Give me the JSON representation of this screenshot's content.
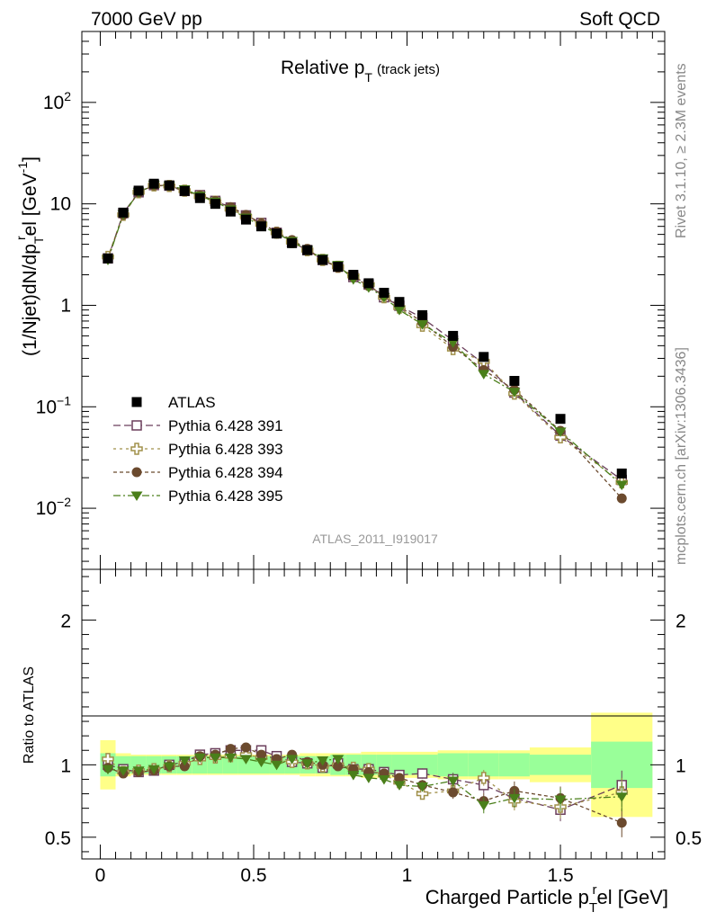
{
  "header": {
    "left": "7000 GeV pp",
    "right": "Soft QCD"
  },
  "side_labels": {
    "rivet": "Rivet 3.1.10, ≥ 2.3M events",
    "mcplots": "mcplots.cern.ch [arXiv:1306.3436]"
  },
  "chart_data": [
    {
      "type": "scatter",
      "panel": "main",
      "title": "Relative p_T (track jets)",
      "title_main": "Relative p",
      "title_sub": "T",
      "title_suffix": "(track jets)",
      "ylabel": "(1/Njet)dN/dp_T^rel [GeV^-1]",
      "ylabel_parts": [
        "(1/Njet)dN/dp",
        "T",
        "r",
        "el [GeV",
        "-1",
        "]"
      ],
      "yscale": "log",
      "ylim": [
        0.0025,
        500
      ],
      "xlim": [
        -0.06,
        1.84
      ],
      "ytick_labels": [
        {
          "v": 0.01,
          "base": "10",
          "exp": "−2"
        },
        {
          "v": 0.1,
          "base": "10",
          "exp": "−1"
        },
        {
          "v": 1,
          "base": "1",
          "exp": ""
        },
        {
          "v": 10,
          "base": "10",
          "exp": ""
        },
        {
          "v": 100,
          "base": "10",
          "exp": "2"
        }
      ],
      "watermark": "ATLAS_2011_I919017",
      "legend": {
        "placement": "lower-left",
        "entries": [
          "ATLAS",
          "Pythia 6.428 391",
          "Pythia 6.428 393",
          "Pythia 6.428 394",
          "Pythia 6.428 395"
        ]
      },
      "x": [
        0.025,
        0.075,
        0.125,
        0.175,
        0.225,
        0.275,
        0.325,
        0.375,
        0.425,
        0.475,
        0.525,
        0.575,
        0.625,
        0.675,
        0.725,
        0.775,
        0.825,
        0.875,
        0.925,
        0.975,
        1.05,
        1.15,
        1.25,
        1.35,
        1.5,
        1.7
      ],
      "series": [
        {
          "name": "ATLAS",
          "marker": "square-filled",
          "color": "#000000",
          "values": [
            2.9,
            8.2,
            13.5,
            15.8,
            15.2,
            13.4,
            11.4,
            10.0,
            8.4,
            7.0,
            6.0,
            5.1,
            4.1,
            3.5,
            2.8,
            2.4,
            2.0,
            1.65,
            1.33,
            1.08,
            0.8,
            0.5,
            0.31,
            0.18,
            0.076,
            0.022
          ]
        },
        {
          "name": "Pythia 6.428 391",
          "marker": "square-open",
          "color": "#6b3f5c",
          "dash": "8,4",
          "values": [
            2.9,
            8.1,
            13.0,
            15.3,
            15.1,
            13.4,
            12.2,
            10.7,
            9.2,
            7.7,
            6.5,
            5.2,
            4.2,
            3.5,
            2.8,
            2.4,
            1.9,
            1.6,
            1.2,
            0.99,
            0.75,
            0.45,
            0.265,
            0.138,
            0.052,
            0.019
          ]
        },
        {
          "name": "Pythia 6.428 393",
          "marker": "cross-open",
          "color": "#a0904a",
          "dash": "3,4",
          "values": [
            3.0,
            7.8,
            13.0,
            15.2,
            15.0,
            13.5,
            11.8,
            10.5,
            8.9,
            7.5,
            6.3,
            5.2,
            4.2,
            3.5,
            2.8,
            2.4,
            1.95,
            1.6,
            1.2,
            0.95,
            0.63,
            0.37,
            0.28,
            0.135,
            0.05,
            0.018
          ]
        },
        {
          "name": "Pythia 6.428 394",
          "marker": "circle-filled",
          "color": "#6b4a2e",
          "dash": "4,3",
          "values": [
            2.9,
            7.8,
            13.0,
            15.2,
            15.0,
            13.3,
            12.1,
            10.7,
            9.3,
            7.8,
            6.4,
            5.3,
            4.4,
            3.6,
            2.8,
            2.35,
            1.9,
            1.55,
            1.25,
            0.98,
            0.68,
            0.39,
            0.23,
            0.147,
            0.058,
            0.0125
          ]
        },
        {
          "name": "Pythia 6.428 395",
          "marker": "triangle-down-filled",
          "color": "#4a7f1a",
          "dash": "8,3,2,3",
          "values": [
            2.8,
            7.9,
            13.0,
            15.4,
            15.1,
            13.9,
            12.0,
            10.5,
            8.8,
            7.3,
            6.1,
            5.1,
            4.3,
            3.5,
            2.9,
            2.5,
            1.8,
            1.5,
            1.2,
            0.9,
            0.65,
            0.43,
            0.21,
            0.14,
            0.057,
            0.017
          ]
        }
      ]
    },
    {
      "type": "scatter",
      "panel": "ratio",
      "ylabel": "Ratio to ATLAS",
      "xlabel": "Charged Particle p_T^rel [GeV]",
      "xlabel_parts": [
        "Charged Particle p",
        "T",
        "r",
        "el [GeV]"
      ],
      "ylim": [
        0.35,
        2.35
      ],
      "xlim": [
        -0.06,
        1.84
      ],
      "xticks": [
        0,
        0.5,
        1,
        1.5
      ],
      "xtick_labels": [
        "0",
        "0.5",
        "1",
        "1.5"
      ],
      "yticks": [
        0.5,
        1,
        2
      ],
      "ytick_labels": [
        "0.5",
        "1",
        "2"
      ],
      "bands": {
        "edges": [
          0.0,
          0.05,
          0.1,
          0.15,
          0.2,
          0.25,
          0.3,
          0.35,
          0.4,
          0.45,
          0.5,
          0.55,
          0.6,
          0.65,
          0.7,
          0.75,
          0.8,
          0.85,
          0.9,
          0.95,
          1.0,
          1.1,
          1.2,
          1.3,
          1.4,
          1.6,
          1.8
        ],
        "inner_halfwidth": [
          0.08,
          0.06,
          0.06,
          0.06,
          0.06,
          0.06,
          0.06,
          0.06,
          0.06,
          0.06,
          0.06,
          0.06,
          0.06,
          0.06,
          0.06,
          0.07,
          0.07,
          0.07,
          0.07,
          0.07,
          0.07,
          0.08,
          0.08,
          0.08,
          0.07,
          0.16
        ],
        "outer_halfwidth": [
          0.17,
          0.08,
          0.07,
          0.07,
          0.07,
          0.07,
          0.07,
          0.07,
          0.07,
          0.07,
          0.07,
          0.07,
          0.07,
          0.08,
          0.08,
          0.08,
          0.08,
          0.09,
          0.09,
          0.09,
          0.09,
          0.1,
          0.1,
          0.1,
          0.12,
          0.36
        ],
        "inner_color": "#99ff99",
        "outer_color": "#ffff88"
      },
      "series": [
        {
          "name": "Pythia 6.428 391",
          "values": [
            1.0,
            0.97,
            0.95,
            0.96,
            1.0,
            1.02,
            1.07,
            1.08,
            1.1,
            1.1,
            1.1,
            1.06,
            1.02,
            1.01,
            0.98,
            1.01,
            0.97,
            0.97,
            0.95,
            0.93,
            0.94,
            0.9,
            0.86,
            0.77,
            0.69,
            0.86
          ]
        },
        {
          "name": "Pythia 6.428 393",
          "values": [
            1.04,
            0.95,
            0.96,
            0.97,
            0.99,
            1.01,
            1.04,
            1.05,
            1.06,
            1.07,
            1.05,
            1.03,
            1.02,
            1.01,
            0.99,
            1.0,
            0.98,
            0.97,
            0.93,
            0.88,
            0.8,
            0.82,
            0.91,
            0.75,
            0.71,
            0.81
          ]
        },
        {
          "name": "Pythia 6.428 394",
          "values": [
            0.98,
            0.94,
            0.95,
            0.96,
            0.99,
            0.99,
            1.06,
            1.07,
            1.11,
            1.12,
            1.07,
            1.04,
            1.07,
            1.02,
            1.0,
            0.99,
            0.97,
            0.95,
            0.94,
            0.91,
            0.86,
            0.81,
            0.75,
            0.82,
            0.77,
            0.6
          ]
        },
        {
          "name": "Pythia 6.428 395",
          "values": [
            0.97,
            0.96,
            0.96,
            0.97,
            0.99,
            1.03,
            1.05,
            1.05,
            1.05,
            1.04,
            1.02,
            1.0,
            1.04,
            1.01,
            1.03,
            1.04,
            0.93,
            0.91,
            0.9,
            0.86,
            0.85,
            0.89,
            0.72,
            0.77,
            0.76,
            0.78
          ]
        }
      ]
    }
  ]
}
